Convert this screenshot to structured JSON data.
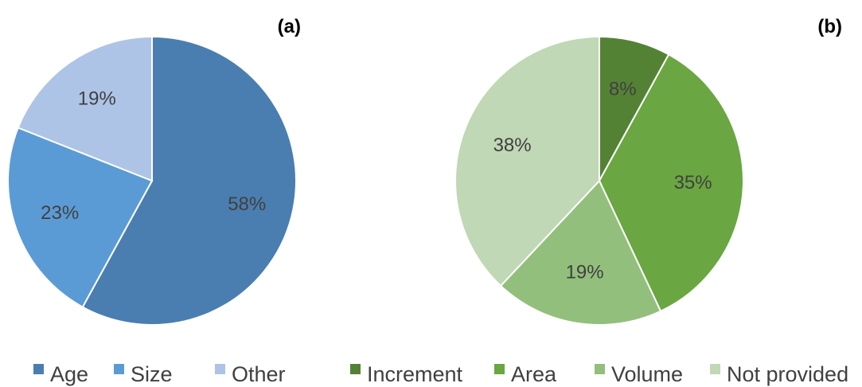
{
  "chart_data": [
    {
      "type": "pie",
      "panel_label": "(a)",
      "legend_position": "bottom",
      "slices": [
        {
          "label": "Age",
          "value": 58,
          "display": "58%",
          "color": "#4a7eb0"
        },
        {
          "label": "Size",
          "value": 23,
          "display": "23%",
          "color": "#5b9bd5"
        },
        {
          "label": "Other",
          "value": 19,
          "display": "19%",
          "color": "#adc4e6"
        }
      ]
    },
    {
      "type": "pie",
      "panel_label": "(b)",
      "legend_position": "bottom",
      "slices": [
        {
          "label": "Increment",
          "value": 8,
          "display": "8%",
          "color": "#548235"
        },
        {
          "label": "Area",
          "value": 35,
          "display": "35%",
          "color": "#6aa641"
        },
        {
          "label": "Volume",
          "value": 19,
          "display": "19%",
          "color": "#93bf7c"
        },
        {
          "label": "Not provided",
          "value": 38,
          "display": "38%",
          "color": "#c0d8b5"
        }
      ]
    }
  ]
}
